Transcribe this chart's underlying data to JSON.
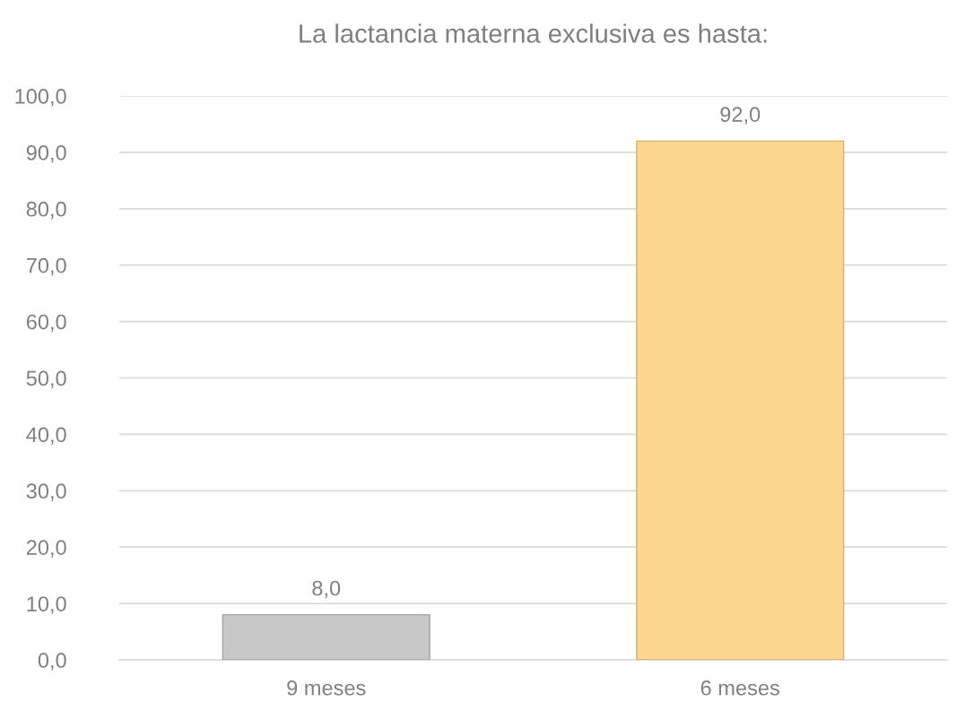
{
  "chart_data": {
    "type": "bar",
    "title": "La lactancia materna exclusiva es hasta:",
    "categories": [
      "9 meses",
      "6 meses"
    ],
    "values": [
      8.0,
      92.0
    ],
    "colors": [
      "#c8c8c8",
      "#fdd78f"
    ],
    "value_labels": [
      "8,0",
      "92,0"
    ],
    "ylim": [
      0,
      100
    ],
    "yticks": [
      {
        "value": 0,
        "label": "0,0"
      },
      {
        "value": 10,
        "label": "10,0"
      },
      {
        "value": 20,
        "label": "20,0"
      },
      {
        "value": 30,
        "label": "30,0"
      },
      {
        "value": 40,
        "label": "40,0"
      },
      {
        "value": 50,
        "label": "50,0"
      },
      {
        "value": 60,
        "label": "60,0"
      },
      {
        "value": 70,
        "label": "70,0"
      },
      {
        "value": 80,
        "label": "80,0"
      },
      {
        "value": 90,
        "label": "90,0"
      },
      {
        "value": 100,
        "label": "100,0"
      }
    ],
    "grid": "y",
    "legend": false
  }
}
